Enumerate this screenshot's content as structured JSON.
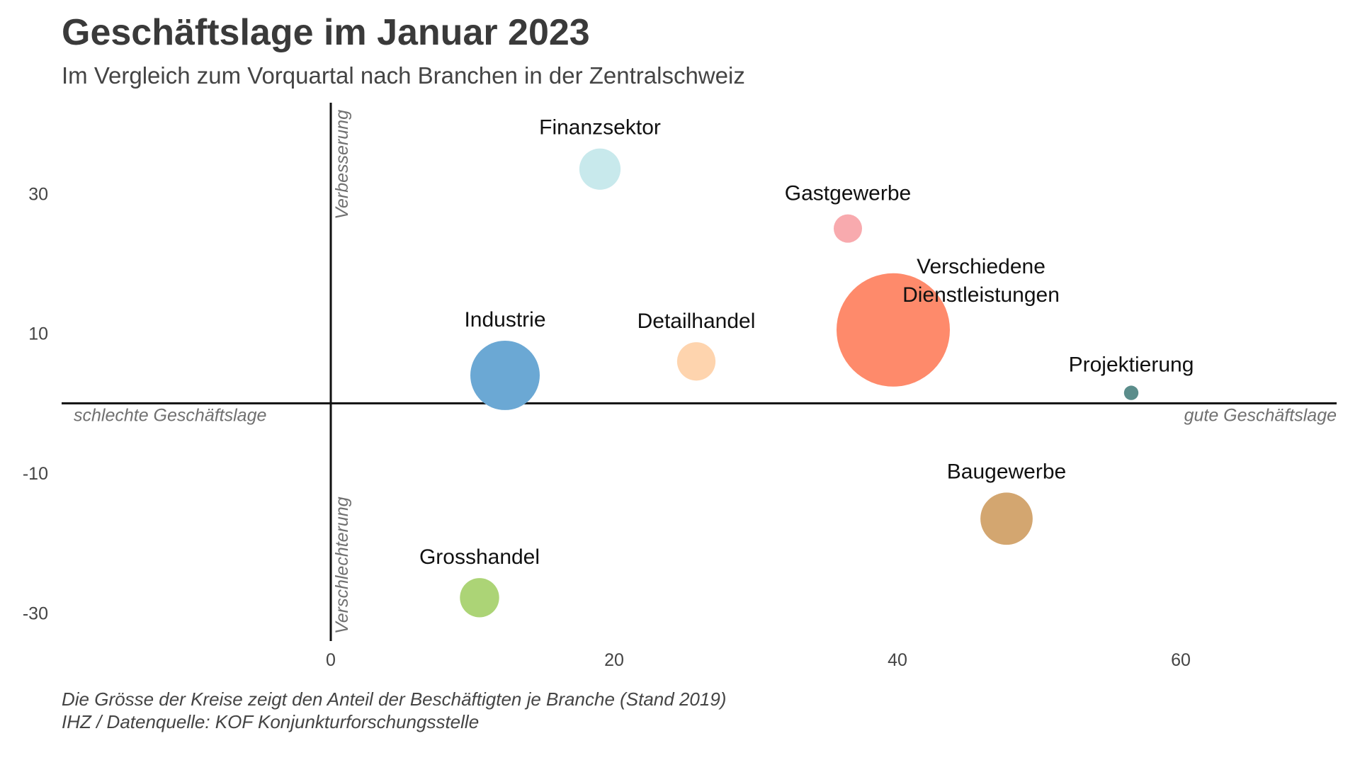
{
  "title": "Geschäftslage im Januar 2023",
  "subtitle": "Im Vergleich zum Vorquartal nach Branchen in der Zentralschweiz",
  "caption": {
    "line1": "Die Grösse der Kreise zeigt den Anteil der Beschäftigten je Branche (Stand 2019)",
    "line2": "IHZ / Datenquelle: KOF Konjunkturforschungsstelle"
  },
  "axis_labels": {
    "left": "schlechte Geschäftslage",
    "right": "gute Geschäftslage",
    "top": "Verbesserung",
    "bottom": "Verschlechterung"
  },
  "chart_data": {
    "type": "scatter",
    "title": "Geschäftslage im Januar 2023",
    "subtitle": "Im Vergleich zum Vorquartal nach Branchen in der Zentralschweiz",
    "xlim": [
      -19,
      71
    ],
    "ylim": [
      -34,
      43
    ],
    "x_ticks": [
      0,
      20,
      40,
      60
    ],
    "y_ticks": [
      30,
      10,
      -10,
      -30
    ],
    "grid": false,
    "legend": "none",
    "size_encoding": "Anteil der Beschäftigten je Branche (Stand 2019)",
    "points": [
      {
        "label": "Finanzsektor",
        "x": 19,
        "y": 33.5,
        "size": 0.053,
        "color": "#c8e9ec"
      },
      {
        "label": "Gastgewerbe",
        "x": 36.5,
        "y": 25,
        "size": 0.025,
        "color": "#f8aaae"
      },
      {
        "label": "Verschiedene Dienstleistungen",
        "x": 39.7,
        "y": 10.5,
        "size": 0.4,
        "color": "#fe8a6b"
      },
      {
        "label": "Industrie",
        "x": 12.3,
        "y": 4,
        "size": 0.15,
        "color": "#6ba8d4"
      },
      {
        "label": "Detailhandel",
        "x": 25.8,
        "y": 6,
        "size": 0.046,
        "color": "#fed4ae"
      },
      {
        "label": "Projektierung",
        "x": 56.5,
        "y": 1.5,
        "size": 0.0065,
        "color": "#5b8d8b"
      },
      {
        "label": "Baugewerbe",
        "x": 47.7,
        "y": -16.5,
        "size": 0.085,
        "color": "#d3a670"
      },
      {
        "label": "Grosshandel",
        "x": 10.5,
        "y": -27.8,
        "size": 0.048,
        "color": "#acd476"
      }
    ]
  }
}
